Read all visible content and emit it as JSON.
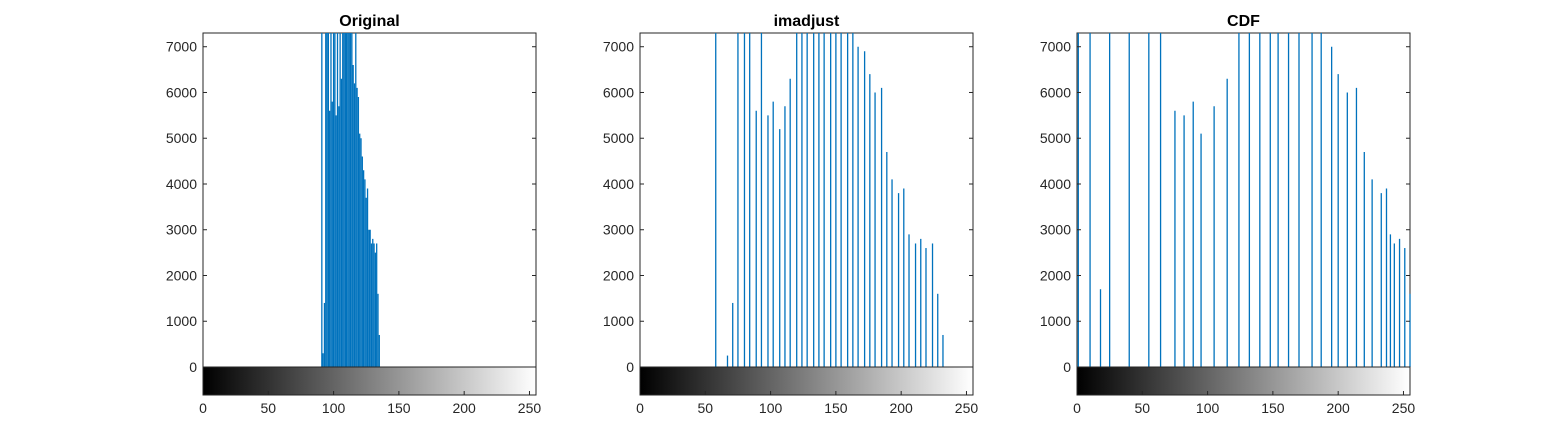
{
  "chart_data": [
    {
      "type": "bar",
      "title": "Original",
      "xlabel": "",
      "ylabel": "",
      "xlim": [
        0,
        255
      ],
      "ylim": [
        0,
        7300
      ],
      "xticks": [
        "0",
        "50",
        "100",
        "150",
        "200",
        "250"
      ],
      "yticks": [
        "0",
        "1000",
        "2000",
        "3000",
        "4000",
        "5000",
        "6000",
        "7000"
      ],
      "grid": false,
      "colorbar": "grayscale",
      "bar_color": "#0072bd",
      "x": [
        91,
        92,
        93,
        94,
        95,
        96,
        97,
        98,
        99,
        100,
        101,
        102,
        103,
        104,
        105,
        106,
        107,
        108,
        109,
        110,
        111,
        112,
        113,
        114,
        115,
        116,
        117,
        118,
        119,
        120,
        121,
        122,
        123,
        124,
        125,
        126,
        127,
        128,
        129,
        130,
        131,
        132,
        133,
        134,
        135
      ],
      "values": [
        7300,
        300,
        1400,
        7300,
        7300,
        7300,
        5600,
        7300,
        5800,
        7300,
        7300,
        5500,
        7300,
        5700,
        7300,
        6300,
        7300,
        7300,
        7300,
        7300,
        7300,
        7300,
        7300,
        7300,
        6600,
        6200,
        7300,
        6100,
        5900,
        5100,
        5000,
        4600,
        4300,
        4100,
        3700,
        3900,
        3000,
        3000,
        2700,
        2800,
        2700,
        2500,
        2700,
        1600,
        700
      ]
    },
    {
      "type": "bar",
      "title": "imadjust",
      "xlabel": "",
      "ylabel": "",
      "xlim": [
        0,
        255
      ],
      "ylim": [
        0,
        7300
      ],
      "xticks": [
        "0",
        "50",
        "100",
        "150",
        "200",
        "250"
      ],
      "yticks": [
        "0",
        "1000",
        "2000",
        "3000",
        "4000",
        "5000",
        "6000",
        "7000"
      ],
      "grid": false,
      "colorbar": "grayscale",
      "bar_color": "#0072bd",
      "x": [
        58,
        67,
        71,
        75,
        80,
        84,
        89,
        93,
        98,
        102,
        107,
        111,
        115,
        120,
        124,
        128,
        133,
        137,
        141,
        146,
        150,
        154,
        159,
        163,
        167,
        172,
        176,
        180,
        185,
        189,
        193,
        198,
        202,
        206,
        211,
        215,
        219,
        224,
        228,
        232,
        237
      ],
      "values": [
        7300,
        250,
        1400,
        7300,
        7300,
        7300,
        5600,
        7300,
        5500,
        5800,
        5200,
        5700,
        6300,
        7300,
        7300,
        7300,
        7300,
        7300,
        7300,
        7300,
        7300,
        7300,
        7300,
        7300,
        7000,
        6900,
        6400,
        6000,
        6100,
        4700,
        4100,
        3800,
        3900,
        2900,
        2700,
        2800,
        2600,
        2700,
        1600,
        700,
        0
      ]
    },
    {
      "type": "bar",
      "title": "CDF",
      "xlabel": "",
      "ylabel": "",
      "xlim": [
        0,
        255
      ],
      "ylim": [
        0,
        7300
      ],
      "xticks": [
        "0",
        "50",
        "100",
        "150",
        "200",
        "250"
      ],
      "yticks": [
        "0",
        "1000",
        "2000",
        "3000",
        "4000",
        "5000",
        "6000",
        "7000"
      ],
      "grid": false,
      "colorbar": "grayscale",
      "bar_color": "#0072bd",
      "x": [
        1,
        10,
        18,
        25,
        40,
        55,
        64,
        75,
        82,
        89,
        95,
        105,
        115,
        124,
        132,
        140,
        148,
        154,
        162,
        170,
        180,
        187,
        195,
        200,
        207,
        214,
        220,
        226,
        233,
        237,
        240,
        243,
        247,
        251,
        255
      ],
      "values": [
        7300,
        7300,
        1700,
        7300,
        7300,
        7300,
        7300,
        5600,
        5500,
        5800,
        5100,
        5700,
        6300,
        7300,
        7300,
        7300,
        7300,
        7300,
        7300,
        7300,
        7300,
        7300,
        7000,
        6400,
        6000,
        6100,
        4700,
        4100,
        3800,
        3900,
        2900,
        2700,
        2800,
        2600,
        1600
      ]
    }
  ]
}
